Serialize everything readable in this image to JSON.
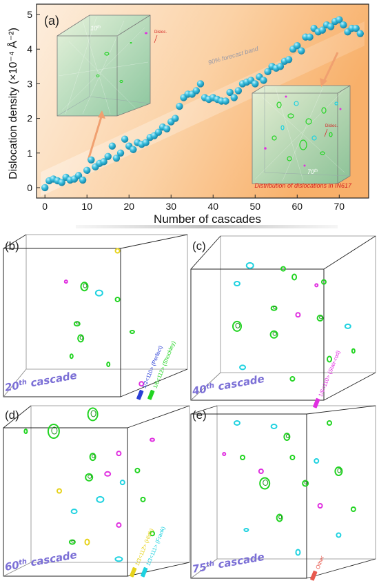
{
  "chart_data": {
    "type": "scatter",
    "panel_label": "(a)",
    "xlabel": "Number of cascades",
    "ylabel": "Dislocation density (×10⁻⁴ Å⁻²)",
    "xlim": [
      -2,
      77
    ],
    "ylim": [
      -0.3,
      5.3
    ],
    "xticks": [
      0,
      10,
      20,
      30,
      40,
      50,
      60,
      70
    ],
    "yticks": [
      0,
      1,
      2,
      3,
      4,
      5
    ],
    "marker_color": "#2eb6d8",
    "background_colors": [
      "#fbd9b6",
      "#f9b673"
    ],
    "forecast_band_label": "90% forecast band",
    "grid": false,
    "points": [
      [
        0,
        0.0
      ],
      [
        1,
        0.2
      ],
      [
        2,
        0.25
      ],
      [
        3,
        0.2
      ],
      [
        4,
        0.15
      ],
      [
        5,
        0.3
      ],
      [
        6,
        0.22
      ],
      [
        7,
        0.25
      ],
      [
        8,
        0.35
      ],
      [
        9,
        0.22
      ],
      [
        10,
        0.5
      ],
      [
        11,
        0.8
      ],
      [
        12,
        0.6
      ],
      [
        13,
        0.7
      ],
      [
        14,
        0.75
      ],
      [
        15,
        0.9
      ],
      [
        16,
        1.2
      ],
      [
        17,
        0.85
      ],
      [
        18,
        1.0
      ],
      [
        19,
        1.4
      ],
      [
        20,
        1.2
      ],
      [
        21,
        1.1
      ],
      [
        22,
        1.3
      ],
      [
        23,
        1.25
      ],
      [
        24,
        1.3
      ],
      [
        25,
        1.45
      ],
      [
        26,
        1.5
      ],
      [
        27,
        1.6
      ],
      [
        28,
        1.75
      ],
      [
        29,
        1.7
      ],
      [
        30,
        1.9
      ],
      [
        31,
        2.0
      ],
      [
        32,
        2.35
      ],
      [
        33,
        2.6
      ],
      [
        34,
        2.7
      ],
      [
        35,
        2.7
      ],
      [
        36,
        2.8
      ],
      [
        37,
        3.0
      ],
      [
        38,
        2.6
      ],
      [
        39,
        2.55
      ],
      [
        40,
        2.6
      ],
      [
        41,
        2.55
      ],
      [
        42,
        2.5
      ],
      [
        43,
        2.5
      ],
      [
        44,
        2.75
      ],
      [
        45,
        2.6
      ],
      [
        46,
        2.8
      ],
      [
        47,
        3.0
      ],
      [
        48,
        3.05
      ],
      [
        49,
        3.1
      ],
      [
        50,
        3.0
      ],
      [
        51,
        3.2
      ],
      [
        52,
        3.1
      ],
      [
        53,
        3.35
      ],
      [
        54,
        3.5
      ],
      [
        55,
        3.45
      ],
      [
        56,
        3.5
      ],
      [
        57,
        3.65
      ],
      [
        58,
        3.7
      ],
      [
        59,
        4.0
      ],
      [
        60,
        4.1
      ],
      [
        61,
        3.95
      ],
      [
        62,
        4.35
      ],
      [
        63,
        4.35
      ],
      [
        64,
        4.6
      ],
      [
        65,
        4.5
      ],
      [
        66,
        4.55
      ],
      [
        67,
        4.7
      ],
      [
        68,
        4.65
      ],
      [
        69,
        4.8
      ],
      [
        70,
        4.85
      ],
      [
        71,
        4.7
      ],
      [
        72,
        4.5
      ],
      [
        73,
        4.6
      ],
      [
        74,
        4.6
      ],
      [
        75,
        4.45
      ]
    ]
  },
  "insets": {
    "early": {
      "label": "10",
      "label_sup": "th",
      "annotation": "Disloc."
    },
    "late": {
      "label": "70",
      "label_sup": "th",
      "annotation": "Disloc.",
      "caption": "Distribution of dislocations in IN617"
    }
  },
  "panels": [
    {
      "id": "b",
      "label": "(b)",
      "cascade_number": "20",
      "cascade_sup": "th",
      "cascade_text": "cascade"
    },
    {
      "id": "c",
      "label": "(c)",
      "cascade_number": "40",
      "cascade_sup": "th",
      "cascade_text": "cascade"
    },
    {
      "id": "d",
      "label": "(d)",
      "cascade_number": "60",
      "cascade_sup": "th",
      "cascade_text": "cascade"
    },
    {
      "id": "e",
      "label": "(e)",
      "cascade_number": "75",
      "cascade_sup": "th",
      "cascade_text": "cascade"
    }
  ],
  "legend": [
    {
      "text": "1/2<110> (Perfect)",
      "color": "#2b3fd6"
    },
    {
      "text": "1/6<112> (Shockley)",
      "color": "#22d422"
    },
    {
      "text": "1/6<110> (Stair-rod)",
      "color": "#e030e0"
    },
    {
      "text": "1/3<112> (Hirth)",
      "color": "#e6d21a"
    },
    {
      "text": "1/3<111> (Frank)",
      "color": "#1fd2e0"
    },
    {
      "text": "Other",
      "color": "#e85a4f"
    }
  ],
  "colors": {
    "caption": "#7b6fd6",
    "shockley": "#22d422",
    "frank": "#1fd2e0",
    "stairrod": "#e030e0",
    "hirth": "#e6d21a",
    "arrow": "#f0a070",
    "red_text": "#d42020"
  }
}
